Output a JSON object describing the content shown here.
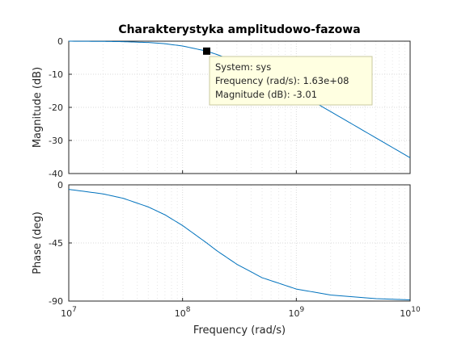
{
  "chart_data": {
    "type": "line",
    "title": "Charakterystyka amplitudowo-fazowa",
    "xlabel": "Frequency  (rad/s)",
    "x_scale": "log",
    "xlim": [
      10000000.0,
      10000000000.0
    ],
    "x_ticks": [
      {
        "value": 10000000.0,
        "base": "10",
        "exp": "7"
      },
      {
        "value": 100000000.0,
        "base": "10",
        "exp": "8"
      },
      {
        "value": 1000000000.0,
        "base": "10",
        "exp": "9"
      },
      {
        "value": 10000000000.0,
        "base": "10",
        "exp": "10"
      }
    ],
    "grid": true,
    "series_color": "#0072bd",
    "magnitude": {
      "ylabel": "Magnitude (dB)",
      "ylim": [
        -40,
        0
      ],
      "yticks": [
        0,
        -10,
        -20,
        -30,
        -40
      ],
      "x": [
        10000000.0,
        20000000.0,
        30000000.0,
        50000000.0,
        70000000.0,
        100000000.0,
        163000000.0,
        200000000.0,
        300000000.0,
        500000000.0,
        1000000000.0,
        2000000000.0,
        5000000000.0,
        10000000000.0
      ],
      "y": [
        -0.01,
        -0.07,
        -0.15,
        -0.41,
        -0.77,
        -1.46,
        -3.01,
        -4.02,
        -6.19,
        -9.84,
        -15.33,
        -21.27,
        -29.22,
        -35.23
      ]
    },
    "phase": {
      "ylabel": "Phase (deg)",
      "ylim": [
        -90,
        0
      ],
      "yticks": [
        0,
        -45,
        -90
      ],
      "x": [
        10000000.0,
        20000000.0,
        30000000.0,
        50000000.0,
        70000000.0,
        100000000.0,
        163000000.0,
        200000000.0,
        300000000.0,
        500000000.0,
        1000000000.0,
        2000000000.0,
        5000000000.0,
        10000000000.0
      ],
      "y": [
        -3.5,
        -7.0,
        -10.4,
        -17.1,
        -23.2,
        -31.5,
        -45.0,
        -51.0,
        -61.5,
        -71.9,
        -80.7,
        -85.3,
        -88.1,
        -89.1
      ]
    },
    "datatip": {
      "x": 163000000.0,
      "y": -3.01,
      "lines": [
        "System: sys",
        "Frequency (rad/s): 1.63e+08",
        "Magnitude (dB): -3.01"
      ]
    }
  }
}
